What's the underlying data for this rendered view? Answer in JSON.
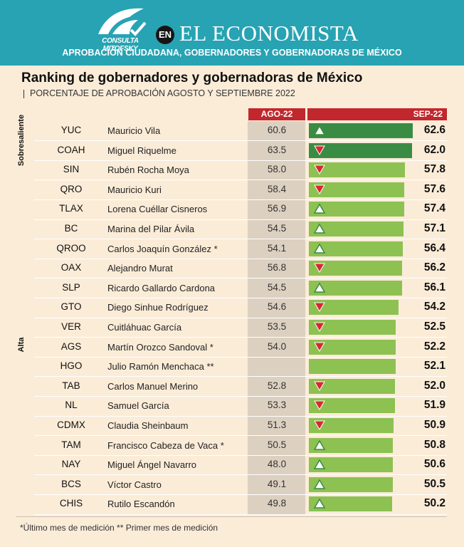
{
  "header": {
    "pollster": "CONSULTA MITOFSKY",
    "en_label": "EN",
    "brand": "EL ECONOMISTA",
    "banner": "APROBACIÓN CIUDADANA, GOBERNADORES Y GOBERNADORAS DE MÉXICO"
  },
  "footnote": "*Último mes de medición ** Primer mes de medición",
  "colors": {
    "header_bg": "#27a3b3",
    "page_bg": "#fbecd8",
    "header_red": "#c1272d",
    "bar_dark": "#3a8c44",
    "bar_light": "#8dc152",
    "tri_up": "#3a8c44",
    "tri_down": "#d7282f"
  },
  "chart_data": {
    "type": "bar",
    "title": "Ranking de gobernadores y gobernadoras de México",
    "subtitle": "PORCENTAJE DE APROBACIÓN AGOSTO Y SEPTIEMBRE 2022",
    "col_aug": "AGO-22",
    "col_sep": "SEP-22",
    "categories_labels": [
      "Sobresaliente",
      "Alta"
    ],
    "xlim": [
      0,
      62.6
    ],
    "rows": [
      {
        "abbr": "YUC",
        "name": "Mauricio Vila",
        "aug": "60.6",
        "sep": 62.6,
        "sep_label": "62.6",
        "trend": "up",
        "category": "Sobresaliente"
      },
      {
        "abbr": "COAH",
        "name": "Miguel Riquelme",
        "aug": "63.5",
        "sep": 62.0,
        "sep_label": "62.0",
        "trend": "down",
        "category": "Sobresaliente"
      },
      {
        "abbr": "SIN",
        "name": "Rubén Rocha Moya",
        "aug": "58.0",
        "sep": 57.8,
        "sep_label": "57.8",
        "trend": "down",
        "category": "Alta"
      },
      {
        "abbr": "QRO",
        "name": "Mauricio Kuri",
        "aug": "58.4",
        "sep": 57.6,
        "sep_label": "57.6",
        "trend": "down",
        "category": "Alta"
      },
      {
        "abbr": "TLAX",
        "name": "Lorena Cuéllar Cisneros",
        "aug": "56.9",
        "sep": 57.4,
        "sep_label": "57.4",
        "trend": "up",
        "category": "Alta"
      },
      {
        "abbr": "BC",
        "name": "Marina del Pilar Ávila",
        "aug": "54.5",
        "sep": 57.1,
        "sep_label": "57.1",
        "trend": "up",
        "category": "Alta"
      },
      {
        "abbr": "QROO",
        "name": "Carlos Joaquín González *",
        "aug": "54.1",
        "sep": 56.4,
        "sep_label": "56.4",
        "trend": "up",
        "category": "Alta"
      },
      {
        "abbr": "OAX",
        "name": "Alejandro Murat",
        "aug": "56.8",
        "sep": 56.2,
        "sep_label": "56.2",
        "trend": "down",
        "category": "Alta"
      },
      {
        "abbr": "SLP",
        "name": "Ricardo Gallardo Cardona",
        "aug": "54.5",
        "sep": 56.1,
        "sep_label": "56.1",
        "trend": "up",
        "category": "Alta"
      },
      {
        "abbr": "GTO",
        "name": "Diego Sinhue Rodríguez",
        "aug": "54.6",
        "sep": 54.2,
        "sep_label": "54.2",
        "trend": "down",
        "category": "Alta"
      },
      {
        "abbr": "VER",
        "name": "Cuitláhuac García",
        "aug": "53.5",
        "sep": 52.5,
        "sep_label": "52.5",
        "trend": "down",
        "category": "Alta"
      },
      {
        "abbr": "AGS",
        "name": "Martín Orozco Sandoval *",
        "aug": "54.0",
        "sep": 52.2,
        "sep_label": "52.2",
        "trend": "down",
        "category": "Alta"
      },
      {
        "abbr": "HGO",
        "name": "Julio Ramón Menchaca **",
        "aug": "",
        "sep": 52.1,
        "sep_label": "52.1",
        "trend": "none",
        "category": "Alta"
      },
      {
        "abbr": "TAB",
        "name": "Carlos Manuel Merino",
        "aug": "52.8",
        "sep": 52.0,
        "sep_label": "52.0",
        "trend": "down",
        "category": "Alta"
      },
      {
        "abbr": "NL",
        "name": "Samuel García",
        "aug": "53.3",
        "sep": 51.9,
        "sep_label": "51.9",
        "trend": "down",
        "category": "Alta"
      },
      {
        "abbr": "CDMX",
        "name": "Claudia Sheinbaum",
        "aug": "51.3",
        "sep": 50.9,
        "sep_label": "50.9",
        "trend": "down",
        "category": "Alta"
      },
      {
        "abbr": "TAM",
        "name": "Francisco Cabeza de Vaca *",
        "aug": "50.5",
        "sep": 50.8,
        "sep_label": "50.8",
        "trend": "up",
        "category": "Alta"
      },
      {
        "abbr": "NAY",
        "name": "Miguel Ángel Navarro",
        "aug": "48.0",
        "sep": 50.6,
        "sep_label": "50.6",
        "trend": "up",
        "category": "Alta"
      },
      {
        "abbr": "BCS",
        "name": "Víctor Castro",
        "aug": "49.1",
        "sep": 50.5,
        "sep_label": "50.5",
        "trend": "up",
        "category": "Alta"
      },
      {
        "abbr": "CHIS",
        "name": "Rutilo Escandón",
        "aug": "49.8",
        "sep": 50.2,
        "sep_label": "50.2",
        "trend": "up",
        "category": "Alta"
      }
    ]
  }
}
